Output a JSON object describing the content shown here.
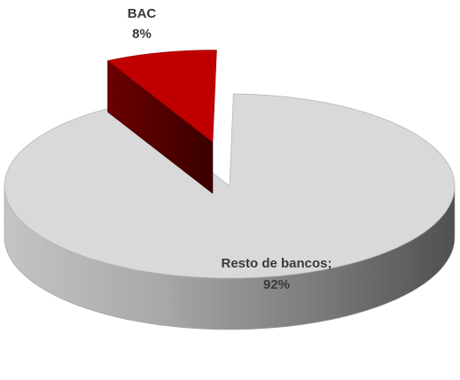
{
  "chart_data": {
    "type": "pie",
    "style": "3d-exploded",
    "slices": [
      {
        "label": "Resto de bancos",
        "value": 92,
        "display_name": "Resto de bancos;",
        "display_value": "92%",
        "color": "#d9d9d9"
      },
      {
        "label": "BAC",
        "value": 8,
        "display_name": "BAC",
        "display_value": "8%",
        "color": "#c00000"
      }
    ],
    "title": "",
    "legend": "none"
  }
}
